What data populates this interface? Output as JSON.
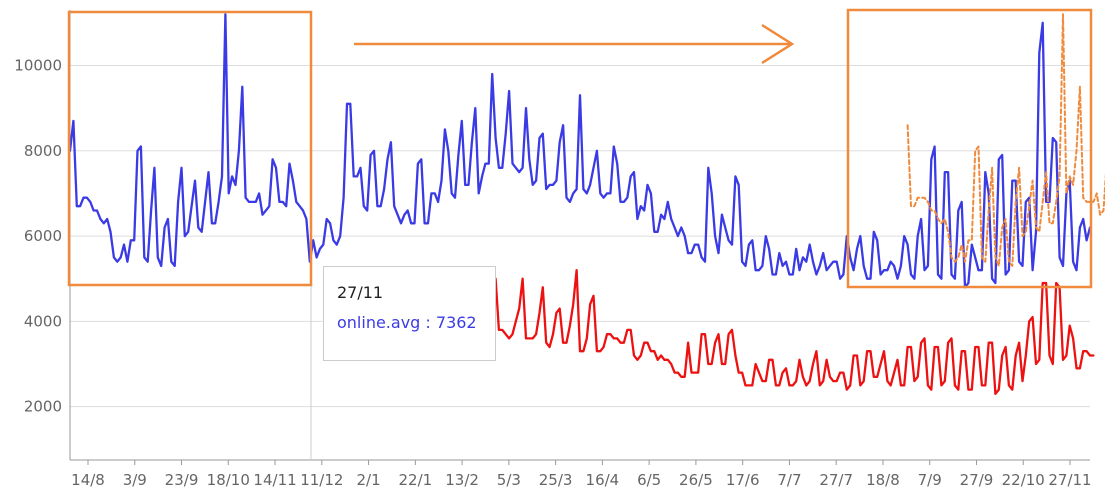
{
  "chart_data": {
    "type": "line",
    "ylim": [
      750,
      11300
    ],
    "yticks": [
      2000,
      4000,
      6000,
      8000,
      10000
    ],
    "x_tick_labels": [
      "14/8",
      "3/9",
      "23/9",
      "18/10",
      "14/11",
      "11/12",
      "2/1",
      "22/1",
      "13/2",
      "5/3",
      "25/3",
      "16/4",
      "6/5",
      "26/5",
      "17/6",
      "7/7",
      "27/7",
      "18/8",
      "7/9",
      "27/9",
      "22/10",
      "27/11"
    ],
    "grid": "horizontal",
    "colors": {
      "online": "#3b3be6",
      "red": "#ee1111",
      "overlay": "#f08a3c",
      "annot": "#f08a3c",
      "axis": "#999999",
      "grid": "#dddddd"
    },
    "series": [
      {
        "key": "online",
        "color": "#3b3be6",
        "values": [
          8000,
          8700,
          6700,
          6700,
          6900,
          6900,
          6800,
          6600,
          6600,
          6400,
          6300,
          6400,
          6100,
          5500,
          5400,
          5500,
          5800,
          5400,
          5900,
          5900,
          8000,
          8100,
          5500,
          5400,
          6600,
          7600,
          5500,
          5300,
          6200,
          6400,
          5400,
          5300,
          6800,
          7600,
          6000,
          6100,
          6700,
          7300,
          6200,
          6100,
          6800,
          7500,
          6300,
          6300,
          6800,
          7400,
          11200,
          7000,
          7400,
          7200,
          8000,
          9500,
          6900,
          6800,
          6800,
          6800,
          7000,
          6500,
          6600,
          6700,
          7800,
          7600,
          6800,
          6800,
          6700,
          7700,
          7300,
          6800,
          6700,
          6600,
          6400,
          5400,
          5900,
          5500,
          5700,
          5800,
          6400,
          6300,
          5900,
          5800,
          6000,
          6900,
          9100,
          9100,
          7400,
          7400,
          7600,
          6700,
          6600,
          7900,
          8000,
          6700,
          6700,
          7100,
          7800,
          8200,
          6700,
          6500,
          6300,
          6500,
          6600,
          6300,
          6300,
          7700,
          7800,
          6300,
          6300,
          7000,
          7000,
          6800,
          7300,
          8500,
          8000,
          7000,
          6900,
          7900,
          8700,
          7200,
          7200,
          8200,
          9000,
          7000,
          7400,
          7700,
          7700,
          9800,
          8300,
          7600,
          7600,
          8400,
          9400,
          7700,
          7600,
          7500,
          7600,
          9000,
          7800,
          7200,
          7300,
          8300,
          8400,
          7100,
          7200,
          7200,
          7300,
          8200,
          8600,
          6900,
          6800,
          7000,
          7100,
          9300,
          7100,
          7000,
          7200,
          7600,
          8000,
          7000,
          6900,
          7000,
          7000,
          8100,
          7700,
          6800,
          6800,
          6900,
          7400,
          7500,
          6400,
          6700,
          6600,
          7200,
          7000,
          6100,
          6100,
          6500,
          6400,
          6800,
          6400,
          6200,
          6000,
          6200,
          6000,
          5600,
          5600,
          5800,
          5800,
          5500,
          5400,
          7600,
          7000,
          6000,
          5600,
          6500,
          6200,
          5900,
          5800,
          7400,
          7200,
          5400,
          5300,
          5800,
          5900,
          5200,
          5200,
          5300,
          6000,
          5700,
          5100,
          5100,
          5600,
          5300,
          5400,
          5100,
          5100,
          5700,
          5200,
          5500,
          5400,
          5800,
          5400,
          5100,
          5300,
          5600,
          5200,
          5300,
          5400,
          5400,
          5000,
          5100,
          6000,
          5500,
          5200,
          5700,
          6000,
          5300,
          5000,
          5000,
          6100,
          5900,
          5100,
          5200,
          5200,
          5400,
          5300,
          5000,
          5300,
          6000,
          5800,
          5100,
          5000,
          6000,
          6400,
          5200,
          5300,
          7800,
          8100,
          5100,
          5000,
          7500,
          7500,
          5100,
          5000,
          6600,
          6800,
          4800,
          4900,
          5800,
          5500,
          5200,
          5200,
          7500,
          7000,
          5000,
          4900,
          7800,
          7900,
          5100,
          5200,
          7300,
          7300,
          5400,
          5300,
          6800,
          6900,
          5200,
          6100,
          10300,
          11000,
          6800,
          6800,
          8300,
          8200,
          5500,
          5300,
          7000,
          7300,
          5400,
          5200,
          6200,
          6400,
          5900,
          6200
        ]
      },
      {
        "key": "red",
        "color": "#ee1111",
        "x_start_index": 126,
        "values": [
          5000,
          3800,
          3800,
          3700,
          3600,
          3700,
          4000,
          4300,
          5000,
          3600,
          3600,
          3600,
          3700,
          4200,
          4800,
          3500,
          3400,
          3700,
          4200,
          4300,
          3500,
          3500,
          3900,
          4400,
          5200,
          3300,
          3300,
          3600,
          4400,
          4600,
          3300,
          3300,
          3400,
          3700,
          3700,
          3600,
          3600,
          3500,
          3500,
          3800,
          3800,
          3200,
          3100,
          3200,
          3500,
          3500,
          3300,
          3300,
          3100,
          3200,
          3100,
          3100,
          3000,
          2800,
          2800,
          2700,
          2700,
          3500,
          2800,
          2800,
          2800,
          3700,
          3700,
          3000,
          3000,
          3500,
          3700,
          3000,
          3000,
          3700,
          3800,
          3200,
          2800,
          2800,
          2500,
          2500,
          2500,
          3000,
          2800,
          2600,
          2600,
          3100,
          3100,
          2500,
          2500,
          2800,
          2900,
          2500,
          2500,
          2600,
          3100,
          2700,
          2500,
          2600,
          3000,
          3300,
          2500,
          2600,
          3100,
          2700,
          2600,
          2600,
          2800,
          2800,
          2400,
          2500,
          3200,
          3200,
          2500,
          2600,
          3300,
          3300,
          2700,
          2700,
          3000,
          3300,
          2600,
          2500,
          2800,
          3100,
          2500,
          2500,
          3400,
          3400,
          2600,
          2700,
          3500,
          3600,
          2500,
          2400,
          3400,
          3400,
          2500,
          2600,
          3500,
          3600,
          2500,
          2400,
          3300,
          3300,
          2400,
          2400,
          3400,
          3400,
          2500,
          2500,
          3500,
          3500,
          2300,
          2400,
          3200,
          3400,
          2500,
          2400,
          3200,
          3500,
          2600,
          3200,
          4000,
          4100,
          3000,
          3100,
          4900,
          4900,
          3200,
          3000,
          4900,
          4800,
          3100,
          3200,
          3900,
          3600,
          2900,
          2900,
          3300,
          3300,
          3200,
          3200
        ]
      },
      {
        "key": "overlay",
        "color": "#f08a3c",
        "x_start_index": 248,
        "values": [
          8600,
          6700,
          6700,
          6900,
          6900,
          6900,
          6800,
          6600,
          6600,
          6400,
          6300,
          6400,
          6100,
          5500,
          5400,
          5500,
          5800,
          5400,
          5900,
          5900,
          8000,
          8100,
          5500,
          5400,
          6600,
          7600,
          5500,
          5300,
          6200,
          6400,
          5400,
          5300,
          6800,
          7600,
          6000,
          6100,
          6700,
          7300,
          6200,
          6100,
          6800,
          7500,
          6300,
          6300,
          6800,
          7400,
          11200,
          7000,
          7400,
          7200,
          8000,
          9500,
          6900,
          6800,
          6800,
          6800,
          7000,
          6500,
          6600,
          7800,
          7600,
          7300
        ]
      }
    ],
    "tooltip": {
      "label": "27/11",
      "item": "online.avg : 7362"
    }
  }
}
